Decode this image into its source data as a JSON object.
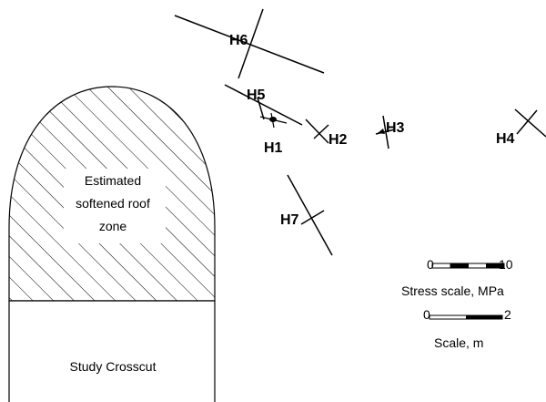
{
  "crosscut": {
    "softened_zone_label": [
      "Estimated",
      "softened roof",
      "zone"
    ],
    "crosscut_label": "Study Crosscut"
  },
  "stress_points": [
    {
      "id": "H1",
      "label": "H1"
    },
    {
      "id": "H2",
      "label": "H2"
    },
    {
      "id": "H3",
      "label": "H3"
    },
    {
      "id": "H4",
      "label": "H4"
    },
    {
      "id": "H5",
      "label": "H5"
    },
    {
      "id": "H6",
      "label": "H6"
    },
    {
      "id": "H7",
      "label": "H7"
    }
  ],
  "stress_scale": {
    "min_label": "0",
    "max_label": "10",
    "caption": "Stress scale,  MPa"
  },
  "length_scale": {
    "min_label": "0",
    "max_label": "2",
    "caption": "Scale, m"
  }
}
